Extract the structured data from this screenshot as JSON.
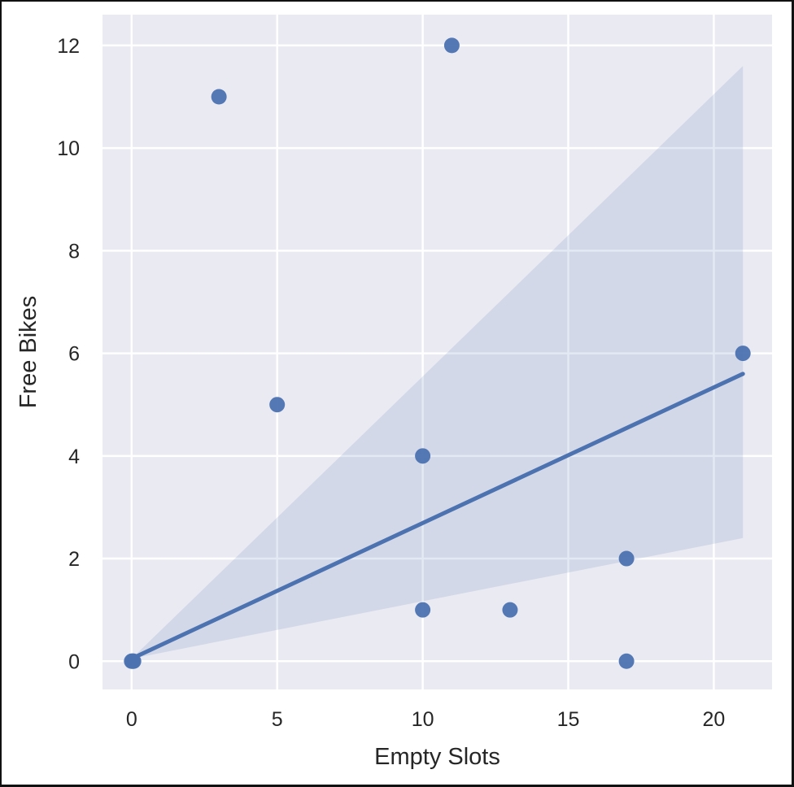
{
  "chart_data": {
    "type": "scatter",
    "xlabel": "Empty Slots",
    "ylabel": "Free Bikes",
    "xlim": [
      -1,
      22
    ],
    "ylim": [
      -0.55,
      12.6
    ],
    "xticks": [
      0,
      5,
      10,
      15,
      20
    ],
    "yticks": [
      0,
      2,
      4,
      6,
      8,
      10,
      12
    ],
    "grid": true,
    "points": [
      {
        "x": 0,
        "y": 0
      },
      {
        "x": 0,
        "y": 0
      },
      {
        "x": 0,
        "y": 0
      },
      {
        "x": 3,
        "y": 11
      },
      {
        "x": 5,
        "y": 5
      },
      {
        "x": 10,
        "y": 4
      },
      {
        "x": 10,
        "y": 1
      },
      {
        "x": 11,
        "y": 12
      },
      {
        "x": 13,
        "y": 1
      },
      {
        "x": 17,
        "y": 2
      },
      {
        "x": 17,
        "y": 0
      },
      {
        "x": 21,
        "y": 6
      }
    ],
    "regression_line": {
      "x": [
        0,
        21
      ],
      "y": [
        0.05,
        5.6
      ]
    },
    "confidence_band": {
      "x": [
        0,
        21
      ],
      "upper": [
        0.05,
        11.6
      ],
      "lower": [
        0.05,
        2.4
      ]
    },
    "colors": {
      "background": "#eaeaf2",
      "grid": "#ffffff",
      "points": "#4c72b0",
      "line": "#4c72b0",
      "band": "#4c72b0"
    }
  }
}
